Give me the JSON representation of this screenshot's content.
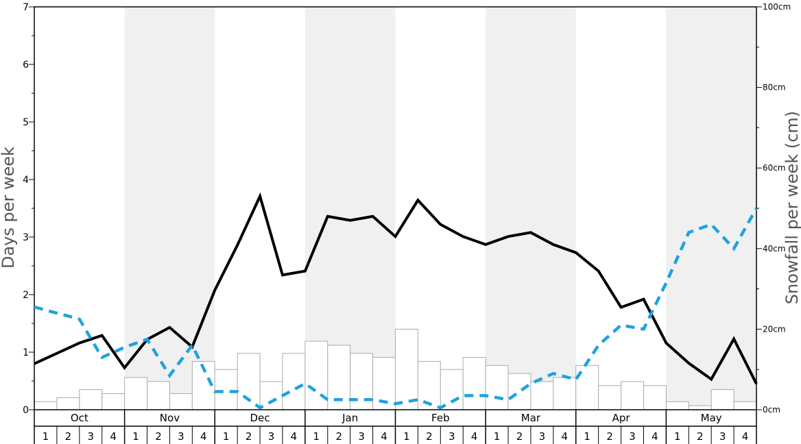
{
  "chart_data": {
    "type": "bar+line",
    "ylabel": "Days per week",
    "y2label": "Snowfall per week (cm)",
    "ylim": [
      0,
      7
    ],
    "y2lim": [
      0,
      100
    ],
    "y_ticks": [
      "0",
      "1",
      "2",
      "3",
      "4",
      "5",
      "6",
      "7"
    ],
    "y2_ticks": [
      "0cm",
      "20cm",
      "40cm",
      "60cm",
      "80cm",
      "100cm"
    ],
    "months": [
      "Oct",
      "Nov",
      "Dec",
      "Jan",
      "Feb",
      "Mar",
      "Apr",
      "May"
    ],
    "weeks": [
      "1",
      "2",
      "3",
      "4"
    ],
    "colors": {
      "bars_fill": "#ffffff",
      "bars_stroke": "#aaaaaa",
      "days_line": "#000000",
      "dashed_line": "#1ea2e0",
      "shade": "#f0f0f0"
    },
    "series": [
      {
        "type": "bar",
        "axis": "y",
        "values": [
          0.14,
          0.21,
          0.35,
          0.28,
          0.56,
          0.49,
          0.28,
          0.84,
          0.7,
          0.98,
          0.49,
          0.98,
          1.19,
          1.12,
          0.98,
          0.91,
          1.4,
          0.84,
          0.7,
          0.91,
          0.77,
          0.63,
          0.49,
          0.56,
          0.77,
          0.42,
          0.49,
          0.42,
          0.14,
          0.07,
          0.35,
          0.14
        ]
      },
      {
        "type": "line",
        "axis": "y",
        "values": [
          0.8,
          0.98,
          1.16,
          1.29,
          0.73,
          1.22,
          1.43,
          1.09,
          2.08,
          2.86,
          3.71,
          2.34,
          2.41,
          3.36,
          3.29,
          3.36,
          3.01,
          3.64,
          3.22,
          3.01,
          2.87,
          3.01,
          3.08,
          2.87,
          2.73,
          2.41,
          1.78,
          1.92,
          1.16,
          0.81,
          0.53,
          1.23,
          0.45
        ]
      },
      {
        "type": "line",
        "style": "dashed",
        "axis": "y2",
        "values": [
          25.5,
          24,
          22.5,
          13,
          15.5,
          17.5,
          8.5,
          16,
          4.5,
          4.5,
          0.5,
          3.5,
          6.5,
          2.5,
          2.5,
          2.5,
          1.5,
          2.5,
          0.5,
          3.5,
          3.5,
          2.5,
          6.5,
          9,
          7.5,
          16,
          21,
          20,
          31.5,
          44,
          46,
          40,
          50
        ]
      }
    ]
  }
}
